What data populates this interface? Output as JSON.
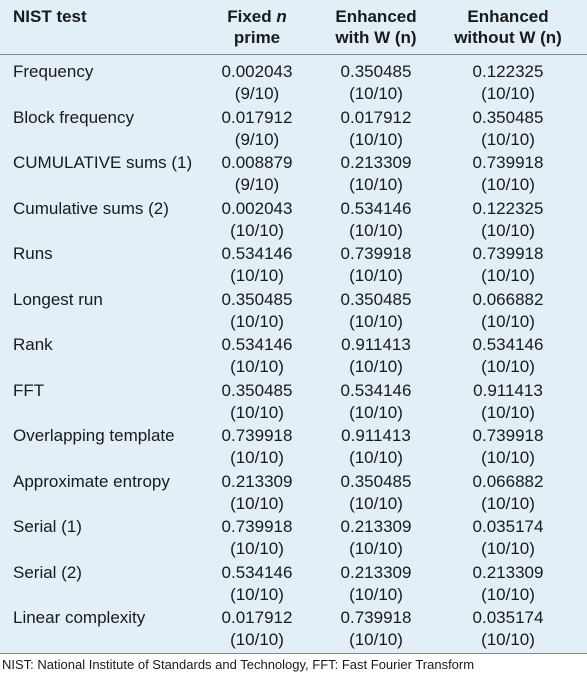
{
  "header": {
    "col0": "NIST test",
    "col1_a": "Fixed ",
    "col1_italic": "n",
    "col1_b": "prime",
    "col2_a": "Enhanced",
    "col2_b": "with W (n)",
    "col3_a": "Enhanced",
    "col3_b": "without W (n)"
  },
  "rows": [
    {
      "name": "Frequency",
      "v1": "0.002043",
      "r1": "(9/10)",
      "v2": "0.350485",
      "r2": "(10/10)",
      "v3": "0.122325",
      "r3": "(10/10)"
    },
    {
      "name": "Block frequency",
      "v1": "0.017912",
      "r1": "(9/10)",
      "v2": "0.017912",
      "r2": "(10/10)",
      "v3": "0.350485",
      "r3": "(10/10)"
    },
    {
      "name": "CUMULATIVE sums (1)",
      "v1": "0.008879",
      "r1": "(9/10)",
      "v2": "0.213309",
      "r2": "(10/10)",
      "v3": "0.739918",
      "r3": "(10/10)"
    },
    {
      "name": "Cumulative sums (2)",
      "v1": "0.002043",
      "r1": "(10/10)",
      "v2": "0.534146",
      "r2": "(10/10)",
      "v3": "0.122325",
      "r3": "(10/10)"
    },
    {
      "name": "Runs",
      "v1": "0.534146",
      "r1": "(10/10)",
      "v2": "0.739918",
      "r2": "(10/10)",
      "v3": "0.739918",
      "r3": "(10/10)"
    },
    {
      "name": "Longest run",
      "v1": "0.350485",
      "r1": "(10/10)",
      "v2": "0.350485",
      "r2": "(10/10)",
      "v3": "0.066882",
      "r3": "(10/10)"
    },
    {
      "name": "Rank",
      "v1": "0.534146",
      "r1": "(10/10)",
      "v2": "0.911413",
      "r2": "(10/10)",
      "v3": "0.534146",
      "r3": "(10/10)"
    },
    {
      "name": "FFT",
      "v1": "0.350485",
      "r1": "(10/10)",
      "v2": "0.534146",
      "r2": "(10/10)",
      "v3": "0.911413",
      "r3": "(10/10)"
    },
    {
      "name": "Overlapping template",
      "v1": "0.739918",
      "r1": "(10/10)",
      "v2": "0.911413",
      "r2": "(10/10)",
      "v3": "0.739918",
      "r3": "(10/10)"
    },
    {
      "name": "Approximate entropy",
      "v1": "0.213309",
      "r1": "(10/10)",
      "v2": "0.350485",
      "r2": "(10/10)",
      "v3": "0.066882",
      "r3": "(10/10)"
    },
    {
      "name": "Serial (1)",
      "v1": "0.739918",
      "r1": "(10/10)",
      "v2": "0.213309",
      "r2": "(10/10)",
      "v3": "0.035174",
      "r3": "(10/10)"
    },
    {
      "name": "Serial (2)",
      "v1": "0.534146",
      "r1": "(10/10)",
      "v2": "0.213309",
      "r2": "(10/10)",
      "v3": "0.213309",
      "r3": "(10/10)"
    },
    {
      "name": "Linear complexity",
      "v1": "0.017912",
      "r1": "(10/10)",
      "v2": "0.739918",
      "r2": "(10/10)",
      "v3": "0.035174",
      "r3": "(10/10)"
    }
  ],
  "footnote": "NIST: National Institute of Standards and Technology, FFT: Fast Fourier Transform",
  "colors": {
    "table_background": "#e3eff7",
    "rule": "#8a8a8a"
  }
}
